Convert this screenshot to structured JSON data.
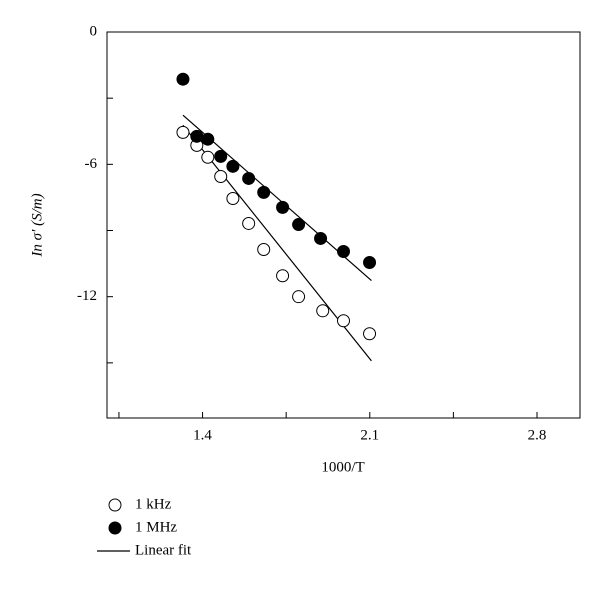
{
  "chart_data": {
    "type": "scatter",
    "x_label": "1000/T",
    "y_label": "In σ′ (S/m)",
    "xlim": [
      1.0,
      2.98
    ],
    "ylim": [
      -17.5,
      0
    ],
    "xticks": [
      1.4,
      2.1,
      2.8
    ],
    "xminorticks": [
      1.05,
      1.75,
      2.45
    ],
    "yticks": [
      0,
      -6,
      -12
    ],
    "yminorticks": [
      -3,
      -9,
      -15
    ],
    "series": [
      {
        "name": "1 kHz",
        "color": "#000000",
        "marker": "open",
        "x": [
          1.318,
          1.376,
          1.422,
          1.476,
          1.527,
          1.593,
          1.656,
          1.735,
          1.802,
          1.903,
          1.99,
          2.099
        ],
        "values": [
          -4.55,
          -5.14,
          -5.68,
          -6.55,
          -7.55,
          -8.68,
          -9.86,
          -11.05,
          -12.0,
          -12.64,
          -13.09,
          -13.68
        ]
      },
      {
        "name": "1 MHz",
        "color": "#000000",
        "marker": "filled",
        "x": [
          1.318,
          1.376,
          1.422,
          1.476,
          1.527,
          1.593,
          1.656,
          1.735,
          1.802,
          1.894,
          1.99,
          2.099
        ],
        "values": [
          -2.14,
          -4.73,
          -4.86,
          -5.64,
          -6.09,
          -6.64,
          -7.27,
          -7.95,
          -8.73,
          -9.36,
          -9.95,
          -10.45
        ]
      }
    ],
    "fit": {
      "name": "Linear fit",
      "color": "#000000",
      "lines": [
        {
          "x": [
            1.318,
            2.107
          ],
          "values": [
            -4.23,
            -14.91
          ]
        },
        {
          "x": [
            1.318,
            2.107
          ],
          "values": [
            -3.77,
            -11.27
          ]
        }
      ]
    }
  }
}
